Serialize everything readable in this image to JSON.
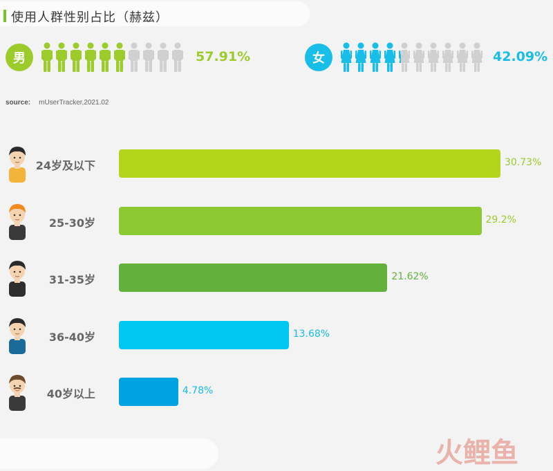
{
  "title": "使用人群性别占比（赫兹）",
  "gender": {
    "male": {
      "label": "男",
      "percent_text": "57.91%",
      "share": 0.5791,
      "color": "#9ccc2b"
    },
    "female": {
      "label": "女",
      "percent_text": "42.09%",
      "share": 0.4209,
      "color": "#18bde8"
    },
    "icons_per_row": 10,
    "inactive_color": "#d0d0d0"
  },
  "source": {
    "label": "source:",
    "value": "mUserTracker,2021.02"
  },
  "chart_data": {
    "type": "bar",
    "orientation": "horizontal",
    "categories": [
      "24岁及以下",
      "25-30岁",
      "31-35岁",
      "36-40岁",
      "40岁以上"
    ],
    "values": [
      30.73,
      29.2,
      21.62,
      13.68,
      4.78
    ],
    "value_labels": [
      "30.73%",
      "29.2%",
      "21.62%",
      "13.68%",
      "4.78%"
    ],
    "colors": [
      "#b3d61c",
      "#8cc832",
      "#62b13a",
      "#00c8f5",
      "#00a3df"
    ],
    "xlim": [
      0,
      30.73
    ]
  },
  "watermark": "火鲤鱼"
}
